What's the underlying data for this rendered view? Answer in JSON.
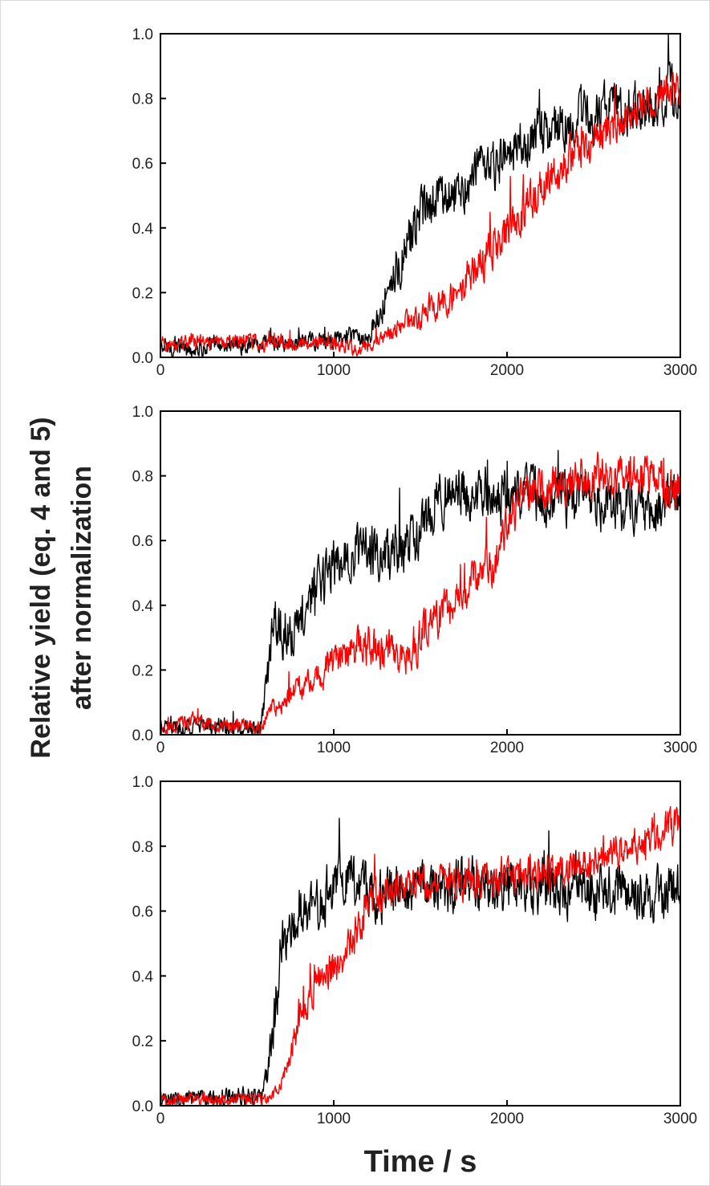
{
  "chart_data": {
    "type": "line",
    "ylabel_line1": "Relative yield (eq. 4 and 5)",
    "ylabel_line2": "after normalization",
    "xlabel": "Time / s",
    "colors": {
      "series_black": "#000000",
      "series_red": "#ff0000",
      "axes": "#000000",
      "text": "#222222"
    },
    "panels": [
      {
        "xlim": [
          0,
          3000
        ],
        "ylim": [
          0,
          1.0
        ],
        "xticks": [
          "0",
          "1000",
          "2000",
          "3000"
        ],
        "yticks": [
          "0.0",
          "0.2",
          "0.4",
          "0.6",
          "0.8",
          "1.0"
        ],
        "x": [
          0,
          100,
          200,
          300,
          400,
          500,
          600,
          700,
          800,
          900,
          1000,
          1100,
          1200,
          1250,
          1300,
          1350,
          1400,
          1500,
          1600,
          1700,
          1800,
          1900,
          2000,
          2100,
          2200,
          2300,
          2400,
          2500,
          2600,
          2700,
          2800,
          2900,
          3000
        ],
        "series": [
          {
            "color": "black",
            "values": [
              0.03,
              0.03,
              0.03,
              0.03,
              0.04,
              0.04,
              0.04,
              0.04,
              0.05,
              0.05,
              0.05,
              0.06,
              0.07,
              0.1,
              0.2,
              0.28,
              0.32,
              0.42,
              0.5,
              0.52,
              0.55,
              0.58,
              0.62,
              0.66,
              0.7,
              0.72,
              0.74,
              0.74,
              0.76,
              0.78,
              0.78,
              0.8,
              0.82
            ],
            "noise": 0.09
          },
          {
            "color": "red",
            "values": [
              0.04,
              0.04,
              0.05,
              0.04,
              0.05,
              0.05,
              0.04,
              0.05,
              0.04,
              0.05,
              0.04,
              0.03,
              0.03,
              0.05,
              0.06,
              0.08,
              0.1,
              0.13,
              0.16,
              0.2,
              0.26,
              0.32,
              0.4,
              0.46,
              0.52,
              0.58,
              0.64,
              0.68,
              0.72,
              0.74,
              0.78,
              0.82,
              0.82
            ],
            "noise": 0.07
          }
        ]
      },
      {
        "xlim": [
          0,
          3000
        ],
        "ylim": [
          0,
          1.0
        ],
        "xticks": [
          "0",
          "1000",
          "2000",
          "3000"
        ],
        "yticks": [
          "0.0",
          "0.2",
          "0.4",
          "0.6",
          "0.8",
          "1.0"
        ],
        "x": [
          0,
          100,
          200,
          300,
          400,
          500,
          580,
          620,
          650,
          700,
          800,
          900,
          1000,
          1100,
          1200,
          1300,
          1400,
          1500,
          1600,
          1700,
          1800,
          1900,
          1950,
          2000,
          2100,
          2200,
          2300,
          2400,
          2500,
          2600,
          2700,
          2800,
          2900,
          3000
        ],
        "series": [
          {
            "color": "black",
            "values": [
              0.02,
              0.02,
              0.03,
              0.03,
              0.02,
              0.02,
              0.02,
              0.18,
              0.38,
              0.34,
              0.32,
              0.46,
              0.52,
              0.56,
              0.58,
              0.55,
              0.57,
              0.62,
              0.72,
              0.76,
              0.74,
              0.74,
              0.74,
              0.72,
              0.74,
              0.72,
              0.74,
              0.72,
              0.72,
              0.7,
              0.7,
              0.7,
              0.7,
              0.74
            ],
            "noise": 0.09
          },
          {
            "color": "red",
            "values": [
              0.02,
              0.03,
              0.04,
              0.03,
              0.03,
              0.02,
              0.02,
              0.06,
              0.08,
              0.1,
              0.14,
              0.18,
              0.22,
              0.26,
              0.28,
              0.26,
              0.24,
              0.3,
              0.36,
              0.42,
              0.48,
              0.52,
              0.55,
              0.66,
              0.74,
              0.76,
              0.78,
              0.78,
              0.8,
              0.8,
              0.8,
              0.8,
              0.78,
              0.76
            ],
            "noise": 0.07
          }
        ]
      },
      {
        "xlim": [
          0,
          3000
        ],
        "ylim": [
          0,
          1.0
        ],
        "xticks": [
          "0",
          "1000",
          "2000",
          "3000"
        ],
        "yticks": [
          "0.0",
          "0.2",
          "0.4",
          "0.6",
          "0.8",
          "1.0"
        ],
        "x": [
          0,
          100,
          200,
          300,
          400,
          500,
          580,
          620,
          660,
          700,
          800,
          900,
          1000,
          1100,
          1200,
          1300,
          1400,
          1500,
          1600,
          1700,
          1800,
          1900,
          2000,
          2100,
          2200,
          2300,
          2400,
          2500,
          2600,
          2700,
          2800,
          2900,
          3000
        ],
        "series": [
          {
            "color": "black",
            "values": [
              0.01,
              0.02,
              0.02,
              0.02,
              0.03,
              0.03,
              0.03,
              0.1,
              0.28,
              0.52,
              0.56,
              0.62,
              0.68,
              0.7,
              0.66,
              0.64,
              0.66,
              0.68,
              0.68,
              0.68,
              0.68,
              0.68,
              0.68,
              0.68,
              0.68,
              0.67,
              0.66,
              0.66,
              0.66,
              0.67,
              0.66,
              0.66,
              0.68
            ],
            "noise": 0.09
          },
          {
            "color": "red",
            "values": [
              0.01,
              0.02,
              0.02,
              0.02,
              0.02,
              0.02,
              0.02,
              0.02,
              0.04,
              0.08,
              0.26,
              0.38,
              0.42,
              0.5,
              0.62,
              0.66,
              0.68,
              0.68,
              0.68,
              0.68,
              0.68,
              0.7,
              0.7,
              0.72,
              0.72,
              0.72,
              0.74,
              0.76,
              0.78,
              0.8,
              0.82,
              0.85,
              0.86
            ],
            "noise": 0.06
          }
        ]
      }
    ]
  }
}
